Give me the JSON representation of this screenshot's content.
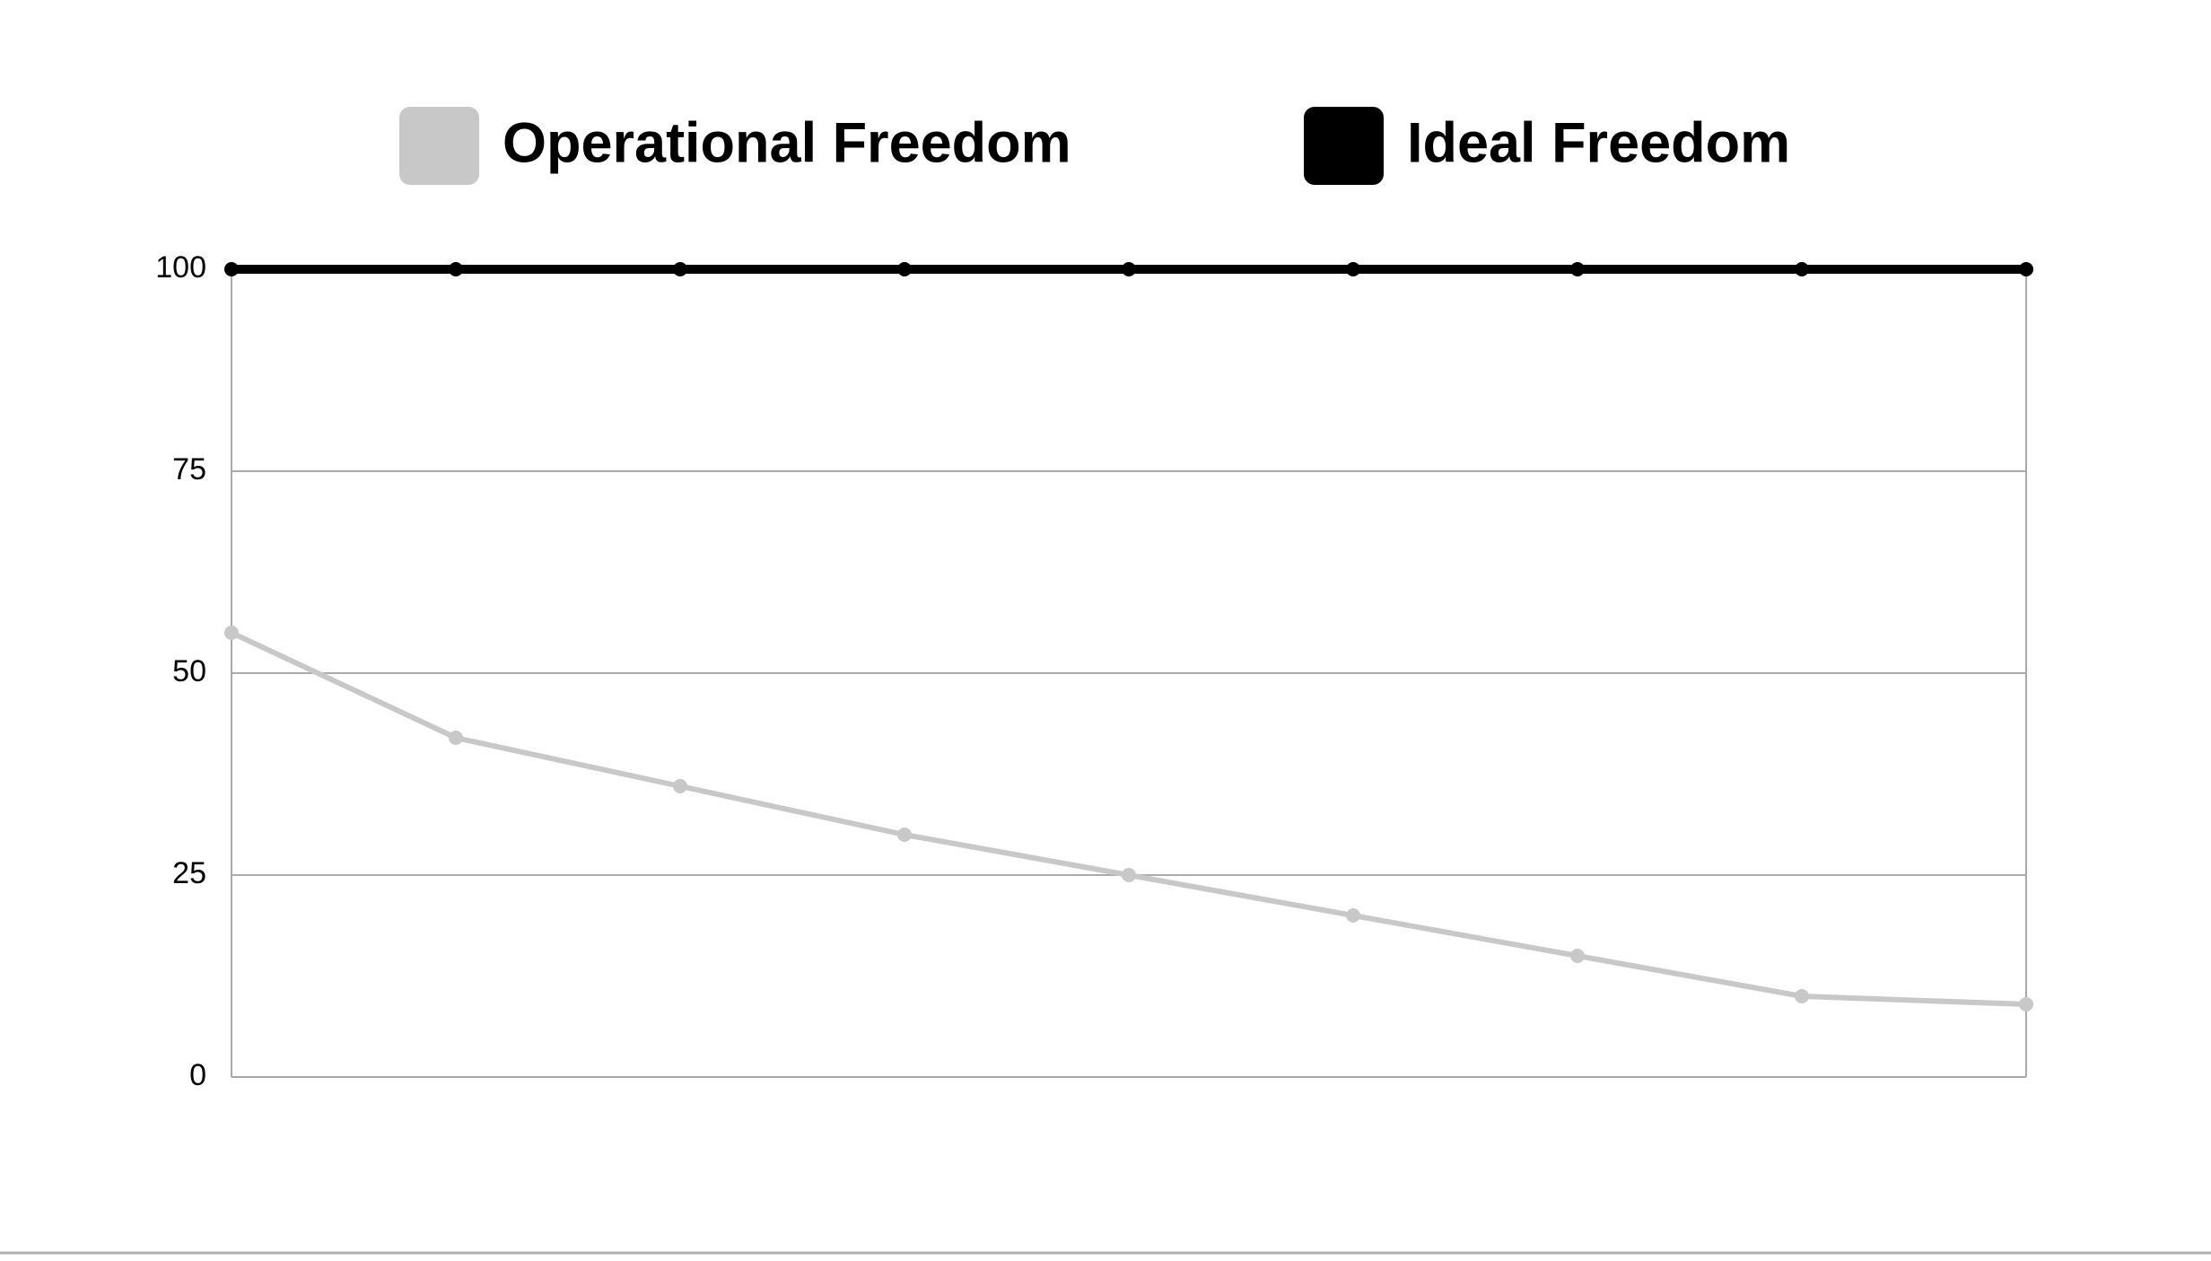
{
  "chart_data": {
    "type": "line",
    "categories": [
      null,
      null,
      null,
      null,
      null,
      null,
      null,
      null,
      null
    ],
    "series": [
      {
        "name": "Operational Freedom",
        "color": "#c8c8c8",
        "values": [
          55,
          42,
          36,
          30,
          25,
          20,
          15,
          10,
          9
        ]
      },
      {
        "name": "Ideal Freedom",
        "color": "#000000",
        "values": [
          100,
          100,
          100,
          100,
          100,
          100,
          100,
          100,
          100
        ]
      }
    ],
    "ylim": [
      0,
      100
    ],
    "yticks": [
      0,
      25,
      50,
      75,
      100
    ],
    "grid": true,
    "legend": "top"
  }
}
